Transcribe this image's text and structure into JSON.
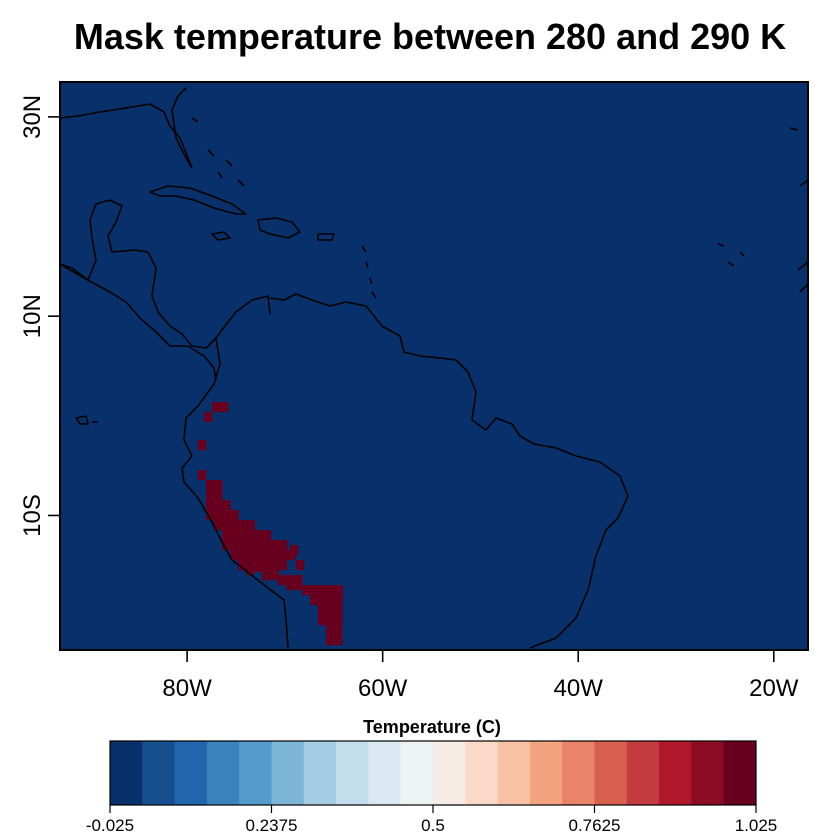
{
  "title": "Mask temperature between 280 and 290 K",
  "map": {
    "background_color": "#08306b",
    "mask_color": "#67001f",
    "coastline_color": "#000000",
    "lon_range": [
      -93,
      -16.5
    ],
    "lat_range": [
      -23.5,
      33.5
    ],
    "x_ticks": [
      {
        "lon": -80,
        "label": "80W"
      },
      {
        "lon": -60,
        "label": "60W"
      },
      {
        "lon": -40,
        "label": "40W"
      },
      {
        "lon": -20,
        "label": "20W"
      }
    ],
    "y_ticks": [
      {
        "lat": 30,
        "label": "30N"
      },
      {
        "lat": 10,
        "label": "10N"
      },
      {
        "lat": -10,
        "label": "10S"
      }
    ]
  },
  "colorbar": {
    "title": "Temperature (C)",
    "colors": [
      "#08306b",
      "#164f8f",
      "#2166ac",
      "#3a84bd",
      "#539ccb",
      "#7db5d7",
      "#a3cde3",
      "#c2ddeb",
      "#dbe9f2",
      "#eef3f6",
      "#f7ebe6",
      "#fbd9c9",
      "#f9c1a4",
      "#f4a381",
      "#e9836a",
      "#d6604d",
      "#c33a3f",
      "#b2182b",
      "#8c0c25",
      "#67001f"
    ],
    "tick_labels": [
      "-0.025",
      "0.2375",
      "0.5",
      "0.7625",
      "1.025"
    ]
  }
}
